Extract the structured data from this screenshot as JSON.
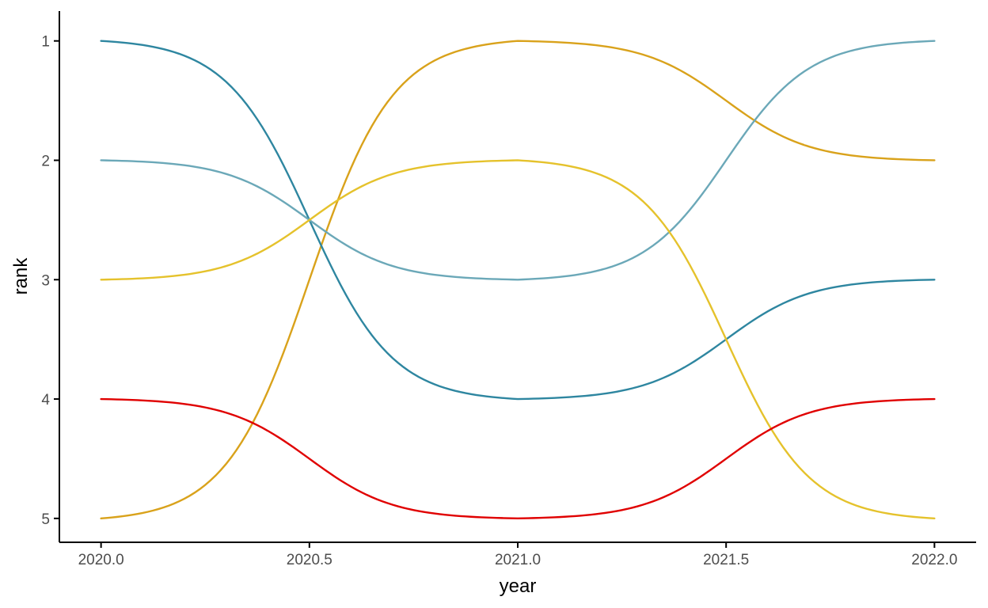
{
  "chart_data": {
    "type": "line",
    "title": "",
    "xlabel": "year",
    "ylabel": "rank",
    "x_ticks": [
      2020.0,
      2020.5,
      2021.0,
      2021.5,
      2022.0
    ],
    "x_tick_labels": [
      "2020.0",
      "2020.5",
      "2021.0",
      "2021.5",
      "2022.0"
    ],
    "y_ticks": [
      1,
      2,
      3,
      4,
      5
    ],
    "y_tick_labels": [
      "1",
      "2",
      "3",
      "4",
      "5"
    ],
    "xlim": [
      2019.9,
      2022.1
    ],
    "ylim": [
      5.2,
      0.75
    ],
    "y_reversed": true,
    "grid": false,
    "legend": "none",
    "line_style": "smooth bump",
    "x": [
      2020,
      2021,
      2022
    ],
    "series": [
      {
        "color": "#D9A21B",
        "values": [
          5,
          1,
          2
        ]
      },
      {
        "color": "#2E86A0",
        "values": [
          1,
          4,
          3
        ]
      },
      {
        "color": "#6BA8B8",
        "values": [
          2,
          3,
          1
        ]
      },
      {
        "color": "#E5C22C",
        "values": [
          3,
          2,
          5
        ]
      },
      {
        "color": "#E00000",
        "values": [
          4,
          5,
          4
        ]
      }
    ]
  }
}
